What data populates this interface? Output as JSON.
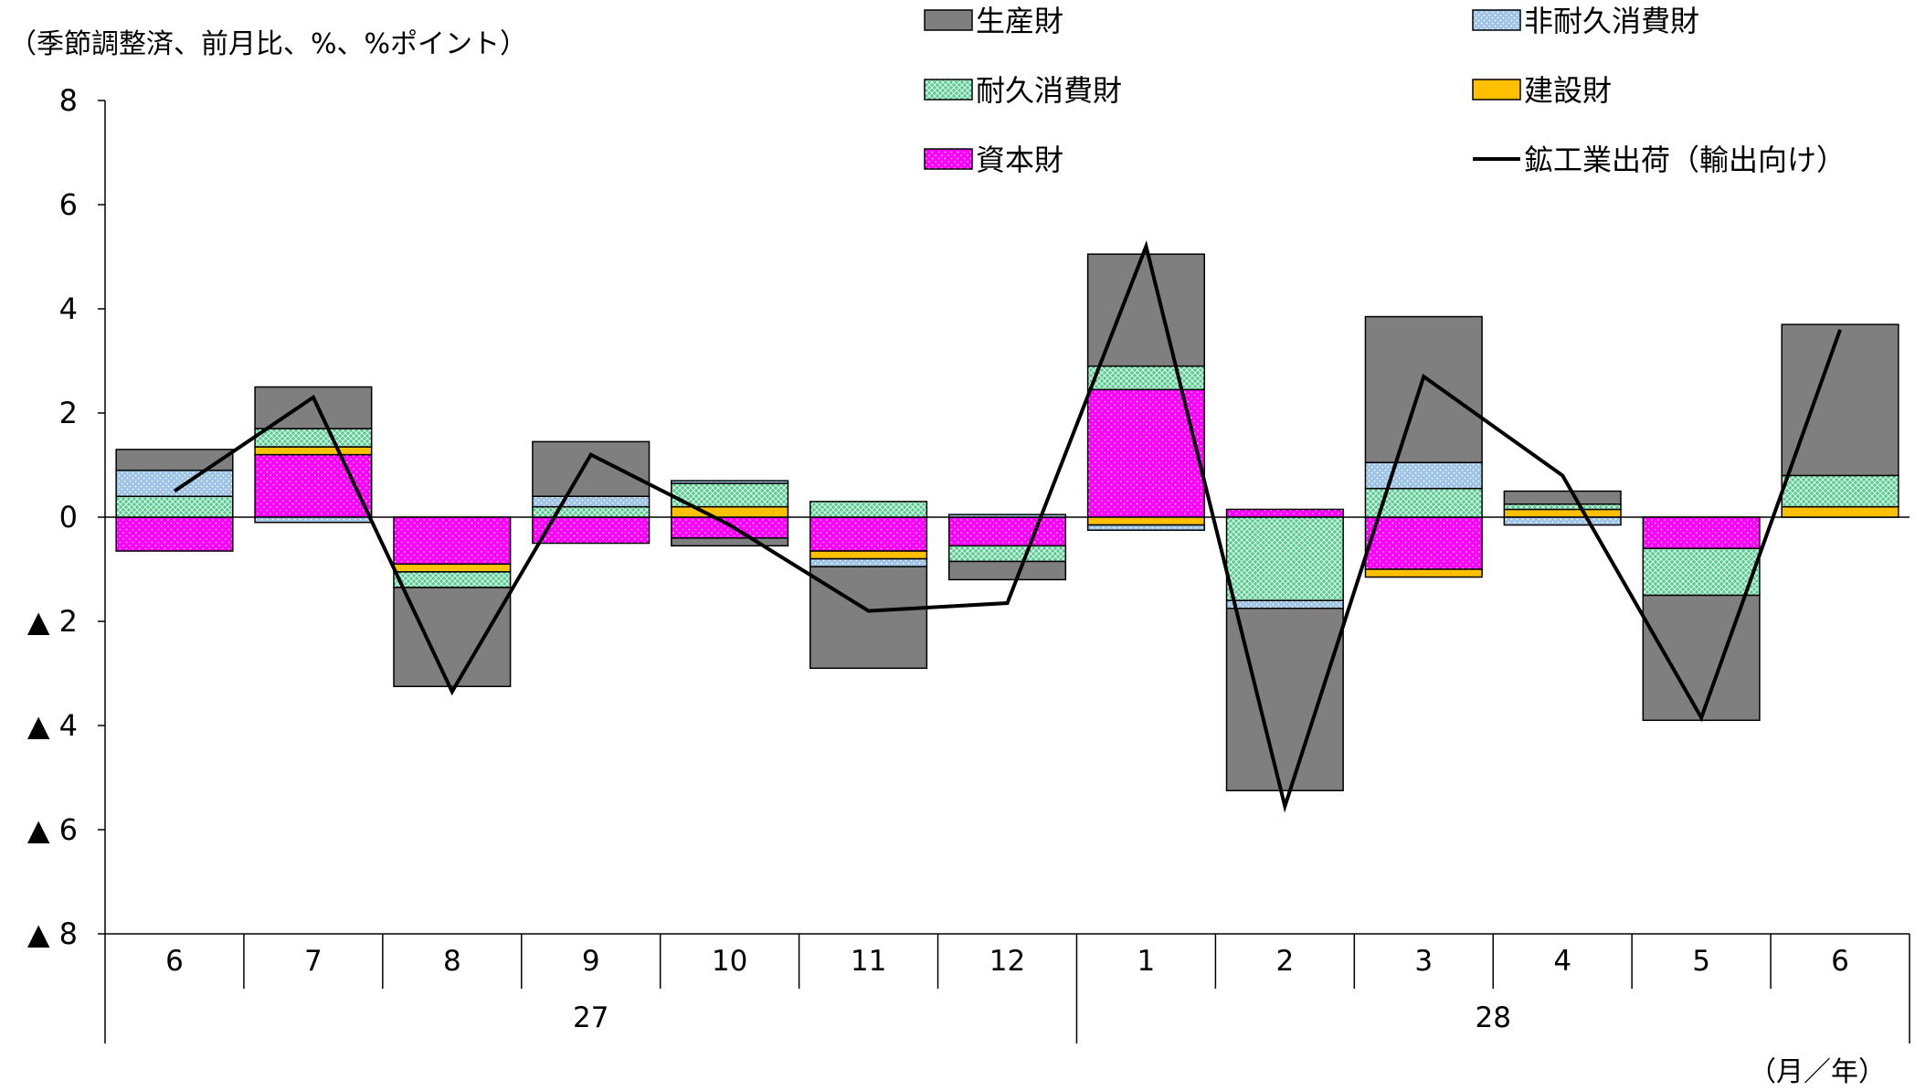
{
  "chart_data": {
    "type": "bar",
    "stacked": true,
    "unit_label": "（季節調整済、前月比、%、%ポイント）",
    "x_unit_label": "（月／年）",
    "categories": [
      "6",
      "7",
      "8",
      "9",
      "10",
      "11",
      "12",
      "1",
      "2",
      "3",
      "4",
      "5",
      "6"
    ],
    "year_groups": [
      {
        "label": "27",
        "span": 7
      },
      {
        "label": "28",
        "span": 6
      }
    ],
    "ylim": [
      -8,
      8
    ],
    "yticks": [
      8,
      6,
      4,
      2,
      0,
      -2,
      -4,
      -6,
      -8
    ],
    "ytick_labels": [
      "8",
      "6",
      "4",
      "2",
      "0",
      "▲ 2",
      "▲ 4",
      "▲ 6",
      "▲ 8"
    ],
    "legend_position": "top",
    "legend": [
      {
        "name": "生産財",
        "color": "#7f7f7f",
        "pattern": "solid",
        "kind": "bar"
      },
      {
        "name": "非耐久消費財",
        "color": "#9dc3e6",
        "pattern": "dots",
        "kind": "bar"
      },
      {
        "name": "耐久消費財",
        "color": "#4fd08a",
        "pattern": "cross",
        "kind": "bar"
      },
      {
        "name": "建設財",
        "color": "#ffc000",
        "pattern": "solid",
        "kind": "bar"
      },
      {
        "name": "資本財",
        "color": "#ff00ff",
        "pattern": "dots",
        "kind": "bar"
      },
      {
        "name": "鉱工業出荷（輸出向け）",
        "color": "#000000",
        "kind": "line"
      }
    ],
    "series": [
      {
        "name": "資本財",
        "values": [
          -0.65,
          1.2,
          -0.9,
          -0.5,
          -0.4,
          -0.65,
          -0.55,
          2.45,
          0.15,
          -1.0,
          0.0,
          -0.6,
          0.0
        ]
      },
      {
        "name": "建設財",
        "values": [
          0.0,
          0.15,
          -0.15,
          0.0,
          0.2,
          -0.15,
          0.0,
          -0.15,
          0.0,
          -0.15,
          0.15,
          0.0,
          0.2
        ]
      },
      {
        "name": "耐久消費財",
        "values": [
          0.4,
          0.35,
          -0.3,
          0.2,
          0.45,
          0.3,
          -0.3,
          0.45,
          -1.6,
          0.55,
          0.1,
          -0.9,
          0.6
        ]
      },
      {
        "name": "非耐久消費財",
        "values": [
          0.5,
          -0.1,
          0.0,
          0.2,
          0.05,
          -0.15,
          0.05,
          -0.1,
          -0.15,
          0.5,
          -0.15,
          0.0,
          0.0
        ]
      },
      {
        "name": "生産財",
        "values": [
          0.4,
          0.8,
          -1.9,
          1.05,
          -0.15,
          -1.95,
          -0.35,
          2.15,
          -3.5,
          2.8,
          0.25,
          -2.4,
          2.9
        ]
      }
    ],
    "line_series": {
      "name": "鉱工業出荷（輸出向け）",
      "values": [
        0.5,
        2.3,
        -3.35,
        1.2,
        -0.15,
        -1.8,
        -1.65,
        5.2,
        -5.55,
        2.7,
        0.8,
        -3.85,
        3.6
      ]
    }
  }
}
